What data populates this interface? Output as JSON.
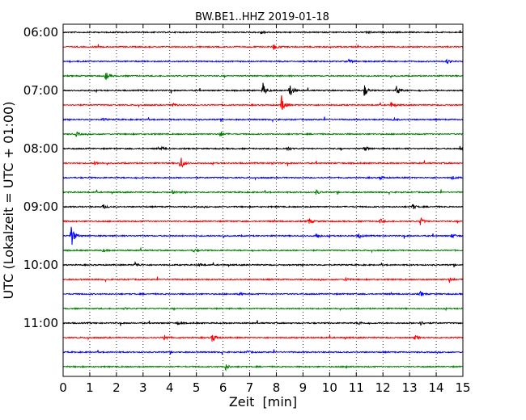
{
  "chart_data": {
    "type": "line",
    "title": "BW.BE1..HHZ 2019-01-18",
    "xlabel": "Zeit  [min]",
    "ylabel": "UTC (Lokalzeit = UTC + 01:00)",
    "xlim": [
      0,
      15
    ],
    "x_ticks": [
      "0",
      "1",
      "2",
      "3",
      "4",
      "5",
      "6",
      "7",
      "8",
      "9",
      "10",
      "11",
      "12",
      "13",
      "14",
      "15"
    ],
    "y_ticks": [
      {
        "label": "06:00",
        "trace_index": 0
      },
      {
        "label": "07:00",
        "trace_index": 4
      },
      {
        "label": "08:00",
        "trace_index": 8
      },
      {
        "label": "09:00",
        "trace_index": 12
      },
      {
        "label": "10:00",
        "trace_index": 16
      },
      {
        "label": "11:00",
        "trace_index": 20
      }
    ],
    "grid": "vertical dotted",
    "trace_interval_minutes": 15,
    "trace_colors": [
      "#000000",
      "#ff0000",
      "#0000ff",
      "#008000"
    ],
    "traces": [
      {
        "start": "06:00",
        "events": [
          [
            7.4,
            3
          ],
          [
            11.4,
            2
          ]
        ]
      },
      {
        "start": "06:15",
        "events": [
          [
            7.9,
            4
          ]
        ]
      },
      {
        "start": "06:30",
        "events": [
          [
            10.7,
            3
          ],
          [
            14.4,
            3
          ]
        ]
      },
      {
        "start": "06:45",
        "events": [
          [
            1.6,
            6
          ]
        ]
      },
      {
        "start": "07:00",
        "events": [
          [
            7.5,
            9
          ],
          [
            8.5,
            10
          ],
          [
            11.3,
            8
          ],
          [
            12.5,
            8
          ]
        ]
      },
      {
        "start": "07:15",
        "events": [
          [
            4.1,
            3
          ],
          [
            8.2,
            12
          ],
          [
            12.3,
            3
          ]
        ]
      },
      {
        "start": "07:30",
        "events": [
          [
            1.5,
            2
          ],
          [
            12.4,
            2
          ]
        ]
      },
      {
        "start": "07:45",
        "events": [
          [
            0.5,
            3
          ],
          [
            5.9,
            4
          ]
        ]
      },
      {
        "start": "08:00",
        "events": [
          [
            3.7,
            2
          ],
          [
            8.4,
            3
          ],
          [
            11.3,
            4
          ],
          [
            14.9,
            3
          ]
        ]
      },
      {
        "start": "08:15",
        "events": [
          [
            1.2,
            2
          ],
          [
            4.4,
            10
          ],
          [
            7.8,
            2
          ]
        ]
      },
      {
        "start": "08:30",
        "events": [
          [
            11.9,
            2
          ],
          [
            14.6,
            2
          ]
        ]
      },
      {
        "start": "08:45",
        "events": [
          [
            4.1,
            2
          ],
          [
            9.5,
            3
          ]
        ]
      },
      {
        "start": "09:00",
        "events": [
          [
            1.5,
            3
          ],
          [
            13.1,
            4
          ]
        ]
      },
      {
        "start": "09:15",
        "events": [
          [
            9.2,
            5
          ],
          [
            11.9,
            3
          ],
          [
            13.4,
            5
          ]
        ]
      },
      {
        "start": "09:30",
        "events": [
          [
            0.3,
            16
          ],
          [
            9.5,
            3
          ],
          [
            11.1,
            3
          ],
          [
            14.6,
            3
          ]
        ]
      },
      {
        "start": "09:45",
        "events": [
          [
            1.5,
            2
          ],
          [
            4.9,
            2
          ]
        ]
      },
      {
        "start": "10:00",
        "events": [
          [
            2.7,
            4
          ],
          [
            5.1,
            2
          ]
        ]
      },
      {
        "start": "10:15",
        "events": [
          [
            10.6,
            3
          ],
          [
            14.5,
            3
          ]
        ]
      },
      {
        "start": "10:30",
        "events": [
          [
            6.6,
            2
          ],
          [
            13.4,
            3
          ]
        ]
      },
      {
        "start": "10:45",
        "events": [
          [
            2.3,
            1
          ]
        ]
      },
      {
        "start": "11:00",
        "events": [
          [
            4.3,
            2
          ],
          [
            11.1,
            2
          ],
          [
            13.4,
            3
          ]
        ]
      },
      {
        "start": "11:15",
        "events": [
          [
            3.8,
            4
          ],
          [
            5.6,
            6
          ],
          [
            13.2,
            3
          ]
        ]
      },
      {
        "start": "11:30",
        "events": [
          [
            6.9,
            2
          ]
        ]
      },
      {
        "start": "11:45",
        "events": [
          [
            6.1,
            4
          ],
          [
            10.6,
            2
          ]
        ]
      }
    ]
  }
}
